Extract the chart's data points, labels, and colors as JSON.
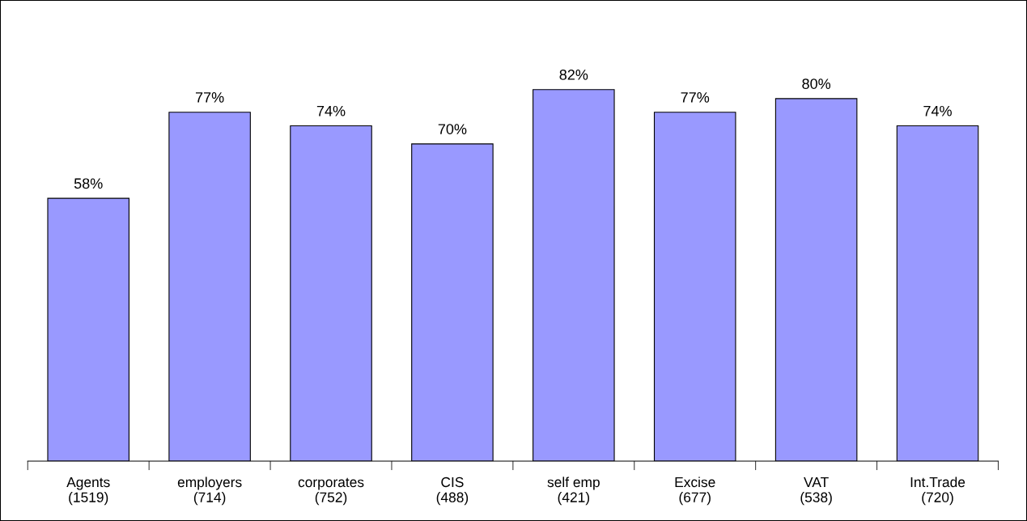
{
  "chart_data": {
    "type": "bar",
    "categories": [
      "Agents\n(1519)",
      "employers\n(714)",
      "corporates\n(752)",
      "CIS\n(488)",
      "self emp\n(421)",
      "Excise\n(677)",
      "VAT\n(538)",
      "Int.Trade\n(720)"
    ],
    "values": [
      58,
      77,
      74,
      70,
      82,
      77,
      80,
      74
    ],
    "value_labels": [
      "58%",
      "77%",
      "74%",
      "70%",
      "82%",
      "77%",
      "80%",
      "74%"
    ],
    "color": "#9999ff",
    "grid": false,
    "legend": false
  }
}
